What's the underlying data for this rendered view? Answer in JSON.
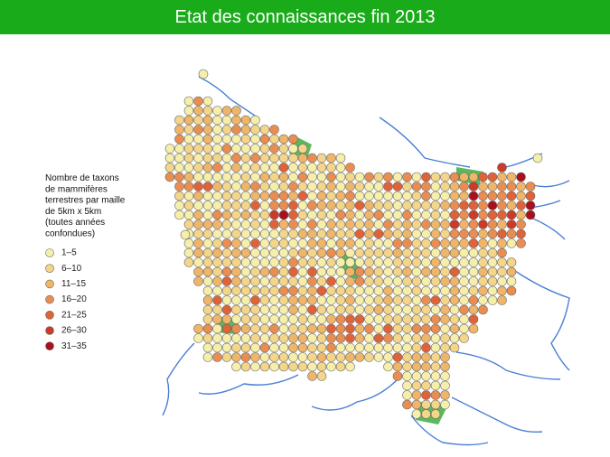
{
  "title": "Etat des connaissances fin 2013",
  "legend": {
    "title": [
      "Nombre de taxons",
      "de mammifères",
      "terrestres par maille",
      "de 5km x 5km",
      "(toutes années",
      "confondues)"
    ],
    "items": [
      {
        "label": "1–5",
        "color": "#f6efab"
      },
      {
        "label": "6–10",
        "color": "#f4d68a"
      },
      {
        "label": "11–15",
        "color": "#efb568"
      },
      {
        "label": "16–20",
        "color": "#ea8d50"
      },
      {
        "label": "21–25",
        "color": "#df6238"
      },
      {
        "label": "26–30",
        "color": "#cc3a2a"
      },
      {
        "label": "31–35",
        "color": "#a90f1c"
      }
    ]
  }
}
